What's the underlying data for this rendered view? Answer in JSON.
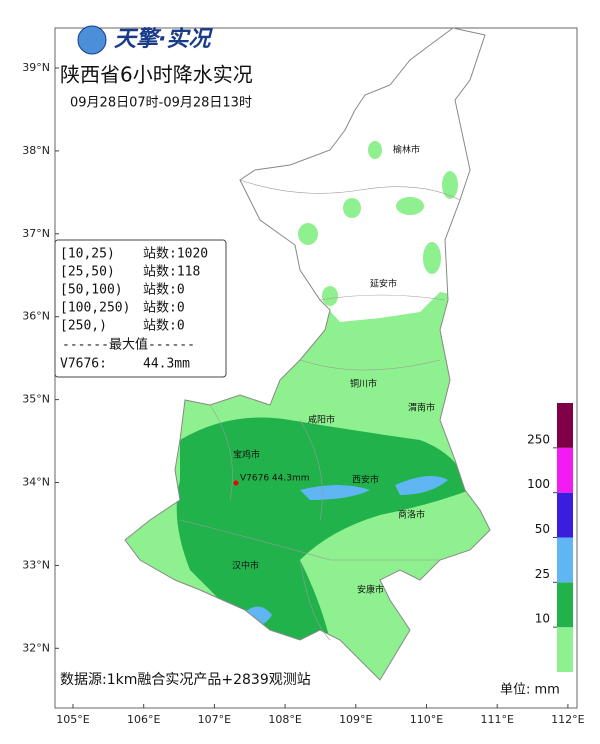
{
  "logo": "天擎·实况",
  "title": "陕西省6小时降水实况",
  "subtitle": "09月28日07时-09月28日13时",
  "lat_ticks": [
    {
      "value": 39,
      "label": "39°N"
    },
    {
      "value": 38,
      "label": "38°N"
    },
    {
      "value": 37,
      "label": "37°N"
    },
    {
      "value": 36,
      "label": "36°N"
    },
    {
      "value": 35,
      "label": "35°N"
    },
    {
      "value": 34,
      "label": "34°N"
    },
    {
      "value": 33,
      "label": "33°N"
    },
    {
      "value": 32,
      "label": "32°N"
    }
  ],
  "lon_ticks": [
    {
      "value": 105,
      "label": "105°E"
    },
    {
      "value": 106,
      "label": "106°E"
    },
    {
      "value": 107,
      "label": "107°E"
    },
    {
      "value": 108,
      "label": "108°E"
    },
    {
      "value": 109,
      "label": "109°E"
    },
    {
      "value": 110,
      "label": "110°E"
    },
    {
      "value": 111,
      "label": "111°E"
    },
    {
      "value": 112,
      "label": "112°E"
    }
  ],
  "legend": {
    "rows": [
      {
        "range": "[10,25)",
        "count": "站数:1020"
      },
      {
        "range": "[25,50)",
        "count": "站数:118"
      },
      {
        "range": "[50,100)",
        "count": "站数:0"
      },
      {
        "range": "[100,250)",
        "count": "站数:0"
      },
      {
        "range": "[250,)",
        "count": "站数:0"
      }
    ],
    "max_header": "------最大值------",
    "max_station": "V7676:",
    "max_value": "44.3mm"
  },
  "cities": [
    "榆林市",
    "延安市",
    "铜川市",
    "渭南市",
    "咸阳市",
    "宝鸡市",
    "西安市",
    "商洛市",
    "汉中市",
    "安康市"
  ],
  "station_label": "V7676 44.3mm",
  "source": "数据源:1km融合实况产品+2839观测站",
  "unit": "单位: mm",
  "colorbar": {
    "ticks": [
      10,
      25,
      50,
      100,
      250
    ],
    "colors": [
      "#8ff08f",
      "#22b24c",
      "#5fb6f2",
      "#3a1ee0",
      "#f21cf2",
      "#800048"
    ]
  }
}
